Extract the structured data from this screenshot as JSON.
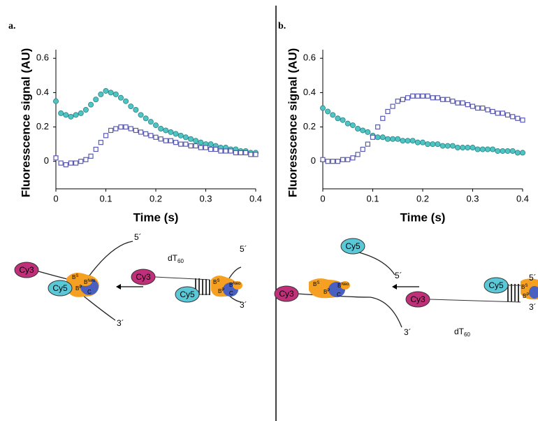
{
  "chart_data": [
    {
      "type": "scatter",
      "panel_label": "a.",
      "x_label": "Time (s)",
      "y_label": "Fluoresscence signal (AU)",
      "xlim": [
        0,
        0.4
      ],
      "ylim": [
        -0.16,
        0.65
      ],
      "xticks": [
        0,
        0.1,
        0.2,
        0.3,
        0.4
      ],
      "yticks": [
        0,
        0.2,
        0.4,
        0.6
      ],
      "grid": false,
      "x": [
        0,
        0.01,
        0.02,
        0.03,
        0.04,
        0.05,
        0.06,
        0.07,
        0.08,
        0.09,
        0.1,
        0.11,
        0.12,
        0.13,
        0.14,
        0.15,
        0.16,
        0.17,
        0.18,
        0.19,
        0.2,
        0.21,
        0.22,
        0.23,
        0.24,
        0.25,
        0.26,
        0.27,
        0.28,
        0.29,
        0.3,
        0.31,
        0.32,
        0.33,
        0.34,
        0.35,
        0.36,
        0.37,
        0.38,
        0.39,
        0.4
      ],
      "series": [
        {
          "color": "#4fc4c4",
          "marker": "circle",
          "values": [
            0.35,
            0.28,
            0.27,
            0.26,
            0.27,
            0.28,
            0.3,
            0.33,
            0.36,
            0.39,
            0.41,
            0.4,
            0.39,
            0.37,
            0.35,
            0.32,
            0.3,
            0.27,
            0.25,
            0.23,
            0.21,
            0.19,
            0.18,
            0.17,
            0.16,
            0.15,
            0.14,
            0.13,
            0.12,
            0.11,
            0.1,
            0.1,
            0.09,
            0.08,
            0.08,
            0.07,
            0.07,
            0.06,
            0.06,
            0.05,
            0.05
          ]
        },
        {
          "color": "#5a5ab0",
          "marker": "square",
          "values": [
            0.02,
            -0.01,
            -0.02,
            -0.01,
            -0.01,
            0,
            0.01,
            0.03,
            0.07,
            0.11,
            0.15,
            0.18,
            0.19,
            0.2,
            0.2,
            0.19,
            0.18,
            0.17,
            0.16,
            0.15,
            0.14,
            0.13,
            0.12,
            0.12,
            0.11,
            0.1,
            0.1,
            0.09,
            0.09,
            0.08,
            0.08,
            0.07,
            0.07,
            0.06,
            0.06,
            0.06,
            0.05,
            0.05,
            0.05,
            0.04,
            0.04
          ]
        }
      ]
    },
    {
      "type": "scatter",
      "panel_label": "b.",
      "x_label": "Time (s)",
      "y_label": "Fluoresscence signal (AU)",
      "xlim": [
        0,
        0.4
      ],
      "ylim": [
        -0.16,
        0.65
      ],
      "xticks": [
        0,
        0.1,
        0.2,
        0.3,
        0.4
      ],
      "yticks": [
        0,
        0.2,
        0.4,
        0.6
      ],
      "grid": false,
      "x": [
        0,
        0.01,
        0.02,
        0.03,
        0.04,
        0.05,
        0.06,
        0.07,
        0.08,
        0.09,
        0.1,
        0.11,
        0.12,
        0.13,
        0.14,
        0.15,
        0.16,
        0.17,
        0.18,
        0.19,
        0.2,
        0.21,
        0.22,
        0.23,
        0.24,
        0.25,
        0.26,
        0.27,
        0.28,
        0.29,
        0.3,
        0.31,
        0.32,
        0.33,
        0.34,
        0.35,
        0.36,
        0.37,
        0.38,
        0.39,
        0.4
      ],
      "series": [
        {
          "color": "#4fc4c4",
          "marker": "circle",
          "values": [
            0.31,
            0.29,
            0.27,
            0.25,
            0.24,
            0.22,
            0.21,
            0.19,
            0.18,
            0.17,
            0.15,
            0.14,
            0.14,
            0.13,
            0.13,
            0.13,
            0.12,
            0.12,
            0.12,
            0.11,
            0.11,
            0.1,
            0.1,
            0.1,
            0.09,
            0.09,
            0.09,
            0.08,
            0.08,
            0.08,
            0.08,
            0.07,
            0.07,
            0.07,
            0.07,
            0.06,
            0.06,
            0.06,
            0.06,
            0.05,
            0.05
          ]
        },
        {
          "color": "#5a5ab0",
          "marker": "square",
          "values": [
            0.01,
            0,
            0,
            0,
            0.01,
            0.01,
            0.02,
            0.04,
            0.07,
            0.1,
            0.14,
            0.2,
            0.25,
            0.29,
            0.32,
            0.35,
            0.36,
            0.37,
            0.38,
            0.38,
            0.38,
            0.38,
            0.37,
            0.37,
            0.36,
            0.36,
            0.35,
            0.34,
            0.34,
            0.33,
            0.32,
            0.31,
            0.31,
            0.3,
            0.29,
            0.28,
            0.28,
            0.27,
            0.26,
            0.25,
            0.24
          ]
        }
      ]
    }
  ],
  "diagrams": [
    {
      "cy3": "Cy3",
      "cy5": "Cy5",
      "five": "5´",
      "three": "3´",
      "dt": "dT",
      "dt_sub": "60",
      "b": "B",
      "s": "S",
      "neo": "Neo",
      "p": "P",
      "c": "C"
    },
    {
      "cy3": "Cy3",
      "cy5": "Cy5",
      "five": "5´",
      "three": "3´",
      "dt": "dT",
      "dt_sub": "60",
      "b": "B",
      "s": "S",
      "neo": "Neo",
      "p": "P",
      "c": "C"
    }
  ]
}
